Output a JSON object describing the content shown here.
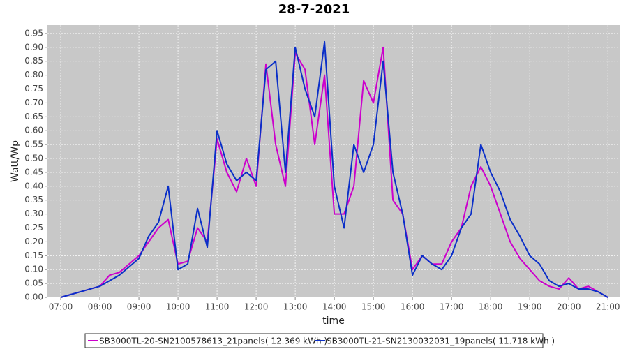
{
  "chart_data": {
    "type": "line",
    "title": "28-7-2021",
    "x_label": "time",
    "y_label": "Watt/Wp",
    "x": [
      7,
      7.25,
      7.5,
      7.75,
      8,
      8.25,
      8.5,
      8.75,
      9,
      9.25,
      9.5,
      9.75,
      10,
      10.25,
      10.5,
      10.75,
      11,
      11.25,
      11.5,
      11.75,
      12,
      12.25,
      12.5,
      12.75,
      13,
      13.25,
      13.5,
      13.75,
      14,
      14.25,
      14.5,
      14.75,
      15,
      15.25,
      15.5,
      15.75,
      16,
      16.25,
      16.5,
      16.75,
      17,
      17.25,
      17.5,
      17.75,
      18,
      18.25,
      18.5,
      18.75,
      19,
      19.25,
      19.5,
      19.75,
      20,
      20.25,
      20.5,
      20.75,
      21
    ],
    "series": [
      {
        "name": "SB3000TL-20-SN2100578613_21panels( 12.369 kWh )",
        "color": "#cc00cc",
        "values": [
          0,
          0.01,
          0.02,
          0.03,
          0.04,
          0.08,
          0.09,
          0.12,
          0.15,
          0.2,
          0.25,
          0.28,
          0.12,
          0.13,
          0.25,
          0.2,
          0.57,
          0.45,
          0.38,
          0.5,
          0.4,
          0.84,
          0.55,
          0.4,
          0.88,
          0.82,
          0.55,
          0.8,
          0.3,
          0.3,
          0.4,
          0.78,
          0.7,
          0.9,
          0.35,
          0.3,
          0.1,
          0.15,
          0.12,
          0.12,
          0.2,
          0.25,
          0.4,
          0.47,
          0.4,
          0.3,
          0.2,
          0.14,
          0.1,
          0.06,
          0.04,
          0.03,
          0.07,
          0.03,
          0.04,
          0.02,
          0
        ]
      },
      {
        "name": "SB3000TL-21-SN2130032031_19panels( 11.718 kWh )",
        "color": "#0a2fc8",
        "values": [
          0,
          0.01,
          0.02,
          0.03,
          0.04,
          0.06,
          0.08,
          0.11,
          0.14,
          0.22,
          0.27,
          0.4,
          0.1,
          0.12,
          0.32,
          0.18,
          0.6,
          0.48,
          0.42,
          0.45,
          0.42,
          0.82,
          0.85,
          0.45,
          0.9,
          0.75,
          0.65,
          0.92,
          0.4,
          0.25,
          0.55,
          0.45,
          0.55,
          0.85,
          0.45,
          0.3,
          0.08,
          0.15,
          0.12,
          0.1,
          0.15,
          0.25,
          0.3,
          0.55,
          0.45,
          0.38,
          0.28,
          0.22,
          0.15,
          0.12,
          0.06,
          0.04,
          0.05,
          0.03,
          0.03,
          0.02,
          0
        ]
      }
    ],
    "xlim": [
      6.66,
      21.3
    ],
    "ylim": [
      0,
      0.98
    ],
    "xticks": [
      {
        "value": 7,
        "label": "07:00"
      },
      {
        "value": 8,
        "label": "08:00"
      },
      {
        "value": 9,
        "label": "09:00"
      },
      {
        "value": 10,
        "label": "10:00"
      },
      {
        "value": 11,
        "label": "11:00"
      },
      {
        "value": 12,
        "label": "12:00"
      },
      {
        "value": 13,
        "label": "13:00"
      },
      {
        "value": 14,
        "label": "14:00"
      },
      {
        "value": 15,
        "label": "15:00"
      },
      {
        "value": 16,
        "label": "16:00"
      },
      {
        "value": 17,
        "label": "17:00"
      },
      {
        "value": 18,
        "label": "18:00"
      },
      {
        "value": 19,
        "label": "19:00"
      },
      {
        "value": 20,
        "label": "20:00"
      },
      {
        "value": 21,
        "label": "21:00"
      }
    ],
    "yticks": [
      {
        "value": 0,
        "label": "0.00"
      },
      {
        "value": 0.05,
        "label": "0.05"
      },
      {
        "value": 0.1,
        "label": "0.10"
      },
      {
        "value": 0.15,
        "label": "0.15"
      },
      {
        "value": 0.2,
        "label": "0.20"
      },
      {
        "value": 0.25,
        "label": "0.25"
      },
      {
        "value": 0.3,
        "label": "0.30"
      },
      {
        "value": 0.35,
        "label": "0.35"
      },
      {
        "value": 0.4,
        "label": "0.40"
      },
      {
        "value": 0.45,
        "label": "0.45"
      },
      {
        "value": 0.5,
        "label": "0.50"
      },
      {
        "value": 0.55,
        "label": "0.55"
      },
      {
        "value": 0.6,
        "label": "0.60"
      },
      {
        "value": 0.65,
        "label": "0.65"
      },
      {
        "value": 0.7,
        "label": "0.70"
      },
      {
        "value": 0.75,
        "label": "0.75"
      },
      {
        "value": 0.8,
        "label": "0.80"
      },
      {
        "value": 0.85,
        "label": "0.85"
      },
      {
        "value": 0.9,
        "label": "0.90"
      },
      {
        "value": 0.95,
        "label": "0.95"
      }
    ],
    "grid": true
  }
}
